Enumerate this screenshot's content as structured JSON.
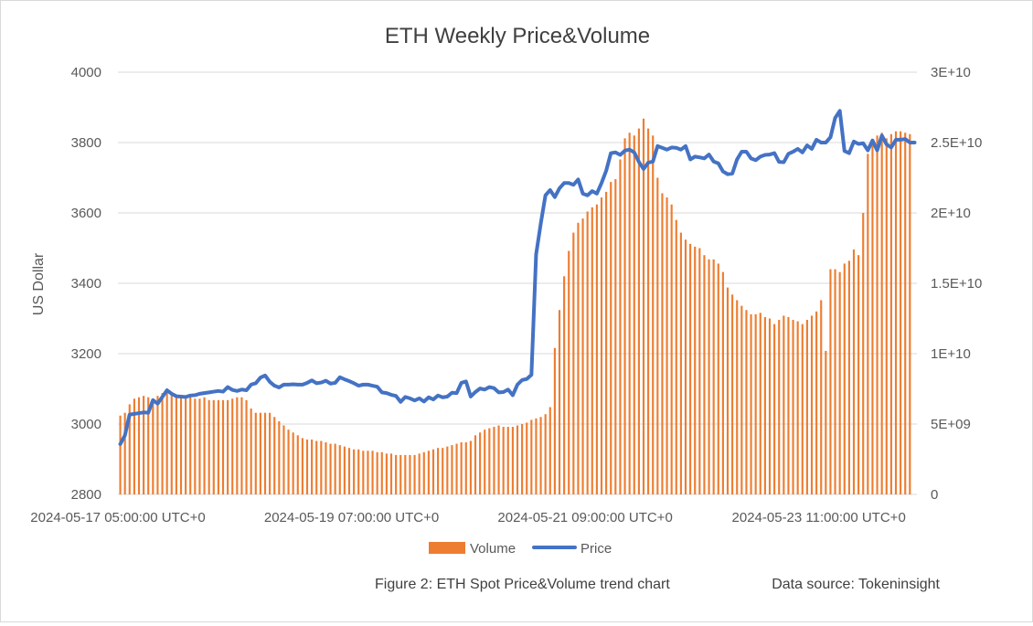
{
  "chart_data": {
    "type": "bar+line",
    "title": "ETH Weekly Price&Volume",
    "ylabel": "US Dollar",
    "y_left": {
      "min": 2800,
      "max": 4000,
      "ticks": [
        "2800",
        "3000",
        "3200",
        "3400",
        "3600",
        "3800",
        "4000"
      ]
    },
    "y_right": {
      "min": 0,
      "max": 30000000000,
      "ticks": [
        "0",
        "5E+09",
        "1E+10",
        "1.5E+10",
        "2E+10",
        "2.5E+10",
        "3E+10"
      ]
    },
    "x_tick_labels": [
      {
        "label": "2024-05-17 05:00:00 UTC+0",
        "index": 0
      },
      {
        "label": "2024-05-19 07:00:00 UTC+0",
        "index": 50
      },
      {
        "label": "2024-05-21 09:00:00 UTC+0",
        "index": 100
      },
      {
        "label": "2024-05-23 11:00:00 UTC+0",
        "index": 150
      }
    ],
    "series": [
      {
        "name": "Volume",
        "type": "bar",
        "axis": "right",
        "color": "#ED7D31",
        "values": [
          5.6,
          5.8,
          6.4,
          6.8,
          6.9,
          7,
          6.9,
          6.8,
          7,
          7.2,
          7.3,
          7.1,
          7,
          6.9,
          6.9,
          7,
          6.8,
          6.8,
          6.9,
          6.7,
          6.7,
          6.7,
          6.7,
          6.7,
          6.8,
          6.9,
          6.9,
          6.7,
          6.1,
          5.8,
          5.8,
          5.8,
          5.8,
          5.5,
          5.2,
          4.9,
          4.6,
          4.4,
          4.2,
          4,
          3.9,
          3.9,
          3.8,
          3.8,
          3.7,
          3.6,
          3.6,
          3.5,
          3.4,
          3.3,
          3.2,
          3.2,
          3.1,
          3.1,
          3.1,
          3,
          3,
          2.9,
          2.9,
          2.8,
          2.8,
          2.8,
          2.8,
          2.8,
          2.9,
          3,
          3.1,
          3.2,
          3.3,
          3.3,
          3.4,
          3.5,
          3.6,
          3.7,
          3.7,
          3.8,
          4.2,
          4.4,
          4.6,
          4.7,
          4.8,
          4.9,
          4.8,
          4.8,
          4.8,
          4.9,
          5,
          5.1,
          5.3,
          5.4,
          5.5,
          5.7,
          6.2,
          10.4,
          13.1,
          15.5,
          17.3,
          18.6,
          19.3,
          19.6,
          20.1,
          20.4,
          20.6,
          21.1,
          21.5,
          22.2,
          22.4,
          23.8,
          25.3,
          25.7,
          25.5,
          26,
          26.7,
          26,
          25.5,
          22.5,
          21.4,
          21.1,
          20.6,
          19.5,
          18.6,
          18.1,
          17.8,
          17.6,
          17.5,
          17,
          16.7,
          16.7,
          16.4,
          15.8,
          14.7,
          14.2,
          13.8,
          13.4,
          13.1,
          12.8,
          12.8,
          12.9,
          12.6,
          12.5,
          12.1,
          12.4,
          12.7,
          12.6,
          12.4,
          12.3,
          12.1,
          12.4,
          12.7,
          13,
          13.8,
          10.2,
          16,
          16,
          15.8,
          16.4,
          16.6,
          17.4,
          17,
          20,
          24.2,
          24.9,
          25.5,
          25.7,
          25.3,
          25.6,
          25.8,
          25.8,
          25.7,
          25.6
        ]
      },
      {
        "name": "Price",
        "type": "line",
        "axis": "left",
        "color": "#4472C4",
        "values": [
          2943,
          2968,
          3027,
          3029,
          3031,
          3033,
          3032,
          3068,
          3058,
          3077,
          3096,
          3086,
          3079,
          3078,
          3077,
          3081,
          3082,
          3086,
          3088,
          3090,
          3092,
          3094,
          3092,
          3105,
          3097,
          3094,
          3098,
          3096,
          3112,
          3116,
          3132,
          3138,
          3120,
          3109,
          3104,
          3112,
          3112,
          3113,
          3112,
          3112,
          3117,
          3124,
          3116,
          3118,
          3123,
          3115,
          3117,
          3133,
          3127,
          3122,
          3116,
          3109,
          3112,
          3112,
          3109,
          3106,
          3090,
          3088,
          3083,
          3080,
          3063,
          3077,
          3073,
          3067,
          3073,
          3064,
          3076,
          3070,
          3081,
          3076,
          3078,
          3089,
          3088,
          3117,
          3121,
          3078,
          3091,
          3101,
          3098,
          3105,
          3102,
          3090,
          3091,
          3098,
          3082,
          3112,
          3125,
          3128,
          3140,
          3482,
          3570,
          3650,
          3665,
          3645,
          3670,
          3685,
          3685,
          3680,
          3695,
          3655,
          3650,
          3662,
          3655,
          3685,
          3720,
          3770,
          3772,
          3765,
          3777,
          3780,
          3772,
          3745,
          3725,
          3743,
          3746,
          3790,
          3785,
          3780,
          3786,
          3785,
          3780,
          3790,
          3752,
          3760,
          3758,
          3755,
          3766,
          3746,
          3741,
          3718,
          3710,
          3712,
          3752,
          3774,
          3774,
          3755,
          3750,
          3760,
          3765,
          3766,
          3770,
          3745,
          3744,
          3768,
          3774,
          3782,
          3772,
          3792,
          3782,
          3808,
          3800,
          3800,
          3815,
          3870,
          3890,
          3776,
          3770,
          3803,
          3796,
          3798,
          3778,
          3806,
          3778,
          3820,
          3795,
          3786,
          3808,
          3808,
          3810,
          3800,
          3800
        ]
      }
    ],
    "legend": {
      "position": "bottom",
      "entries": [
        "Volume",
        "Price"
      ]
    },
    "grid": true
  },
  "caption": {
    "text": "Figure 2: ETH Spot Price&Volume trend chart",
    "source": "Data source: Tokeninsight"
  }
}
